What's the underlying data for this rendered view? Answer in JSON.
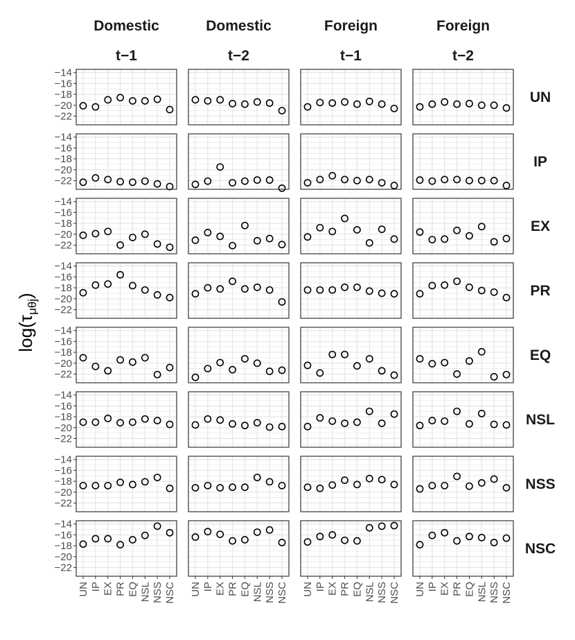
{
  "chart_data": {
    "type": "scatter",
    "ylabel": "log(τμθj)",
    "ylabel_parts": {
      "fn": "log(",
      "sym": "τ",
      "sub": "μθj",
      "close": ")"
    },
    "column_strips": [
      {
        "top": "Domestic",
        "bottom": "t−1"
      },
      {
        "top": "Domestic",
        "bottom": "t−2"
      },
      {
        "top": "Foreign",
        "bottom": "t−1"
      },
      {
        "top": "Foreign",
        "bottom": "t−2"
      }
    ],
    "row_strips": [
      "UN",
      "IP",
      "EX",
      "PR",
      "EQ",
      "NSL",
      "NSS",
      "NSC"
    ],
    "categories": [
      "UN",
      "IP",
      "EX",
      "PR",
      "EQ",
      "NSL",
      "NSS",
      "NSC"
    ],
    "y_ticks": [
      -14,
      -16,
      -18,
      -20,
      -22
    ],
    "y_tick_labels": [
      "−14",
      "−16",
      "−18",
      "−20",
      "−22"
    ],
    "ylim": [
      -23.6,
      -13.4
    ],
    "grid": true,
    "marker": "open-circle",
    "panels": [
      [
        [
          -20.1,
          -20.3,
          -19.0,
          -18.6,
          -19.2,
          -19.2,
          -18.9,
          -20.8
        ],
        [
          -19.0,
          -19.2,
          -19.0,
          -19.7,
          -19.8,
          -19.4,
          -19.6,
          -21.0
        ],
        [
          -20.3,
          -19.5,
          -19.6,
          -19.4,
          -19.8,
          -19.3,
          -19.8,
          -20.6
        ],
        [
          -20.3,
          -19.8,
          -19.4,
          -19.8,
          -19.7,
          -20.0,
          -20.0,
          -20.5
        ]
      ],
      [
        [
          -22.3,
          -21.5,
          -21.8,
          -22.2,
          -22.3,
          -22.1,
          -22.6,
          -23.1
        ],
        [
          -22.7,
          -22.1,
          -19.5,
          -22.4,
          -22.1,
          -21.9,
          -21.9,
          -23.4
        ],
        [
          -22.4,
          -21.8,
          -21.1,
          -21.8,
          -22.0,
          -21.8,
          -22.4,
          -22.9
        ],
        [
          -21.9,
          -22.1,
          -21.8,
          -21.8,
          -22.0,
          -22.0,
          -22.0,
          -22.9
        ]
      ],
      [
        [
          -20.2,
          -19.9,
          -19.5,
          -22.0,
          -20.6,
          -20.0,
          -21.8,
          -22.4
        ],
        [
          -21.1,
          -19.7,
          -20.4,
          -22.1,
          -18.4,
          -21.2,
          -20.8,
          -21.9
        ],
        [
          -20.5,
          -18.8,
          -19.5,
          -17.1,
          -19.2,
          -21.6,
          -19.1,
          -20.9
        ],
        [
          -19.6,
          -21.0,
          -20.9,
          -19.3,
          -20.3,
          -18.6,
          -21.4,
          -20.8
        ]
      ],
      [
        [
          -18.9,
          -17.5,
          -17.3,
          -15.6,
          -17.6,
          -18.4,
          -19.3,
          -19.8
        ],
        [
          -19.1,
          -18.0,
          -18.2,
          -16.8,
          -18.2,
          -17.9,
          -18.4,
          -20.6
        ],
        [
          -18.4,
          -18.4,
          -18.4,
          -17.9,
          -17.9,
          -18.6,
          -19.0,
          -19.1
        ],
        [
          -19.1,
          -17.6,
          -17.5,
          -16.8,
          -17.9,
          -18.5,
          -18.8,
          -19.8
        ]
      ],
      [
        [
          -19.0,
          -20.6,
          -21.4,
          -19.4,
          -19.8,
          -19.0,
          -22.1,
          -20.8
        ],
        [
          -22.6,
          -21.0,
          -19.9,
          -21.2,
          -19.2,
          -20.0,
          -21.5,
          -21.3
        ],
        [
          -20.4,
          -21.8,
          -18.4,
          -18.4,
          -20.5,
          -19.2,
          -21.4,
          -22.2
        ],
        [
          -19.2,
          -20.1,
          -19.9,
          -22.0,
          -19.6,
          -17.9,
          -22.5,
          -22.1
        ]
      ],
      [
        [
          -19.0,
          -19.0,
          -18.3,
          -19.1,
          -19.0,
          -18.4,
          -18.7,
          -19.4
        ],
        [
          -19.5,
          -18.4,
          -18.6,
          -19.3,
          -19.6,
          -19.1,
          -19.9,
          -19.8
        ],
        [
          -19.8,
          -18.2,
          -18.8,
          -19.2,
          -19.0,
          -17.0,
          -19.2,
          -17.5
        ],
        [
          -19.6,
          -18.7,
          -18.8,
          -17.0,
          -19.3,
          -17.4,
          -19.4,
          -19.5
        ]
      ],
      [
        [
          -18.8,
          -18.8,
          -18.8,
          -18.2,
          -18.6,
          -18.1,
          -17.3,
          -19.3
        ],
        [
          -19.2,
          -18.8,
          -19.2,
          -19.1,
          -19.1,
          -17.3,
          -18.1,
          -18.8
        ],
        [
          -19.1,
          -19.3,
          -18.7,
          -17.8,
          -18.6,
          -17.5,
          -17.7,
          -18.6
        ],
        [
          -19.4,
          -18.8,
          -18.8,
          -17.1,
          -18.9,
          -18.3,
          -17.6,
          -19.2
        ]
      ],
      [
        [
          -17.7,
          -16.7,
          -16.7,
          -17.8,
          -16.9,
          -16.1,
          -14.4,
          -15.6
        ],
        [
          -16.4,
          -15.4,
          -15.9,
          -17.1,
          -16.9,
          -15.5,
          -15.1,
          -17.4
        ],
        [
          -17.3,
          -16.3,
          -16.0,
          -17.0,
          -17.1,
          -14.7,
          -14.4,
          -14.3
        ],
        [
          -17.8,
          -16.1,
          -15.6,
          -17.1,
          -16.3,
          -16.5,
          -17.4,
          -16.6
        ]
      ]
    ]
  },
  "colors": {
    "background": "#ffffff",
    "grid": "#e8e8e8",
    "panel_border": "#333333",
    "point_stroke": "#000000",
    "tick_text": "#4d4d4d",
    "strip_text": "#1a1a1a"
  }
}
